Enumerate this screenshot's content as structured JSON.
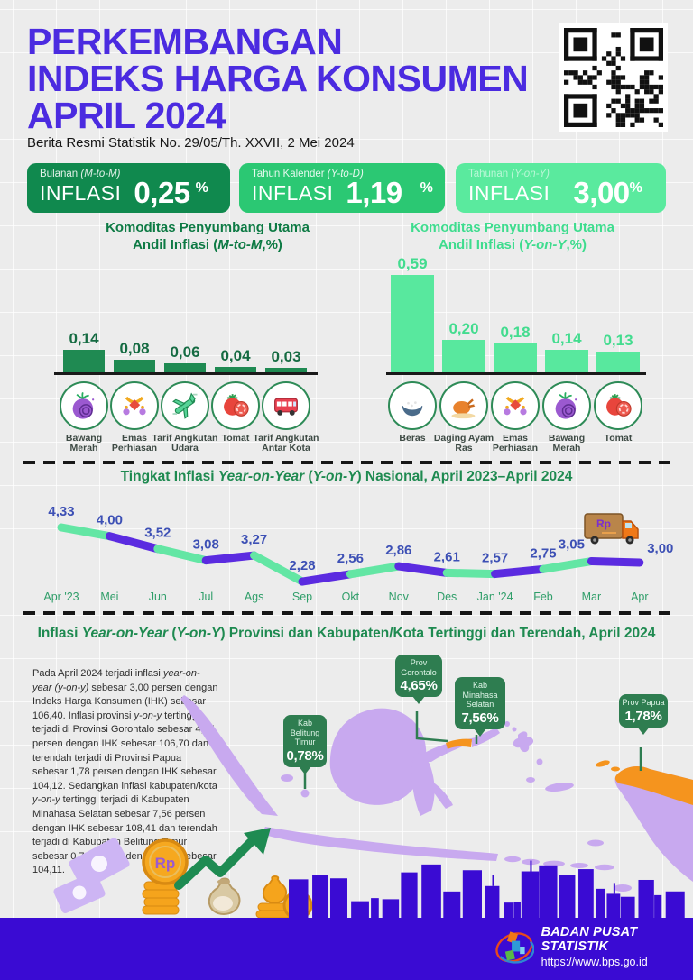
{
  "header": {
    "title_lines": [
      "PERKEMBANGAN",
      "INDEKS HARGA KONSUMEN",
      "APRIL 2024"
    ],
    "subtitle": "Berita Resmi Statistik No. 29/05/Th. XXVII, 2 Mei 2024",
    "qr_label": "qr-code"
  },
  "colors": {
    "accent_purple": "#4B2BE0",
    "box_mtm": "#10894E",
    "box_ytd": "#2BC873",
    "box_yoy": "#5AEA9E",
    "bar_dark_green": "#1F8A52",
    "bar_mint": "#58E89E",
    "line_green": "#63E6A4",
    "line_purple": "#5B2BE0",
    "value_label_blue": "#3D50B5",
    "month_label_green": "#2F9E69",
    "section_title_green": "#1E8A50",
    "callout_green": "#2E7D50",
    "map_purple": "#C8A9EF",
    "map_orange": "#F5941E",
    "footer_blue": "#3A0BD3"
  },
  "stat_boxes": [
    {
      "label_segments": [
        {
          "t": "Bulanan "
        },
        {
          "t": "(M-to-M)",
          "i": true
        }
      ],
      "prefix": "INFLASI",
      "value": "0,25",
      "unit": "%"
    },
    {
      "label_segments": [
        {
          "t": "Tahun Kalender "
        },
        {
          "t": "(Y-to-D)",
          "i": true
        }
      ],
      "prefix": "INFLASI",
      "value": "1,19",
      "unit": "%"
    },
    {
      "label_segments": [
        {
          "t": "Tahunan "
        },
        {
          "t": "(Y-on-Y)",
          "i": true
        }
      ],
      "prefix": "INFLASI",
      "value": "3,00",
      "unit": "%"
    }
  ],
  "captions": {
    "left_line1": [
      {
        "t": "Komoditas Penyumbang Utama"
      }
    ],
    "left_line2": [
      {
        "t": "Andil Inflasi ("
      },
      {
        "t": "M-to-M",
        "i": true
      },
      {
        "t": ",%)"
      }
    ],
    "right_line1": [
      {
        "t": "Komoditas Penyumbang Utama"
      }
    ],
    "right_line2": [
      {
        "t": "Andil Inflasi ("
      },
      {
        "t": "Y-on-Y",
        "i": true
      },
      {
        "t": ",%)"
      }
    ]
  },
  "chart_data": [
    {
      "id": "mtm_contributors",
      "type": "bar",
      "title": "Komoditas Penyumbang Utama Andil Inflasi (M-to-M,%)",
      "categories": [
        "Bawang Merah",
        "Emas Perhiasan",
        "Tarif Angkutan Udara",
        "Tomat",
        "Tarif Angkutan Antar Kota"
      ],
      "values": [
        0.14,
        0.08,
        0.06,
        0.04,
        0.03
      ],
      "value_labels": [
        "0,14",
        "0,08",
        "0,06",
        "0,04",
        "0,03"
      ],
      "icons": [
        "onion",
        "jewelry",
        "plane",
        "tomato",
        "bus"
      ],
      "bar_color": "#1F8A52",
      "label_color": "#156B42",
      "ylim": [
        0,
        0.2
      ],
      "grid": false
    },
    {
      "id": "yoy_contributors",
      "type": "bar",
      "title": "Komoditas Penyumbang Utama Andil Inflasi (Y-on-Y,%)",
      "categories": [
        "Beras",
        "Daging Ayam Ras",
        "Emas Perhiasan",
        "Bawang Merah",
        "Tomat"
      ],
      "values": [
        0.59,
        0.2,
        0.18,
        0.14,
        0.13
      ],
      "value_labels": [
        "0,59",
        "0,20",
        "0,18",
        "0,14",
        "0,13"
      ],
      "icons": [
        "rice",
        "chicken",
        "jewelry",
        "onion",
        "tomato"
      ],
      "bar_color": "#58E89E",
      "label_color": "#43DC8F",
      "ylim": [
        0,
        0.7
      ],
      "grid": false
    },
    {
      "id": "yoy_national_line",
      "type": "line",
      "title": "Tingkat Inflasi Year-on-Year (Y-on-Y) Nasional, April 2023–April 2024",
      "title_segments": [
        {
          "t": "Tingkat Inflasi "
        },
        {
          "t": "Year-on-Year",
          "i": true
        },
        {
          "t": " ("
        },
        {
          "t": "Y-on-Y",
          "i": true
        },
        {
          "t": ") Nasional, April 2023–April 2024"
        }
      ],
      "x": [
        "Apr '23",
        "Mei",
        "Jun",
        "Jul",
        "Ags",
        "Sep",
        "Okt",
        "Nov",
        "Des",
        "Jan '24",
        "Feb",
        "Mar",
        "Apr"
      ],
      "values": [
        4.33,
        4.0,
        3.52,
        3.08,
        3.27,
        2.28,
        2.56,
        2.86,
        2.61,
        2.57,
        2.75,
        3.05,
        3.0
      ],
      "value_labels": [
        "4,33",
        "4,00",
        "3,52",
        "3,08",
        "3,27",
        "2,28",
        "2,56",
        "2,86",
        "2,61",
        "2,57",
        "2,75",
        "3,05",
        "3,00"
      ],
      "segment_colors": [
        "#63E6A4",
        "#5B2BE0"
      ],
      "label_color": "#3D50B5",
      "tick_color": "#2F9E69",
      "ylim": [
        2.0,
        4.6
      ],
      "grid": false,
      "legend": "none"
    }
  ],
  "map_section": {
    "title_segments": [
      {
        "t": "Inflasi "
      },
      {
        "t": "Year-on-Year",
        "i": true
      },
      {
        "t": " ("
      },
      {
        "t": "Y-on-Y",
        "i": true
      },
      {
        "t": ") Provinsi dan Kabupaten/Kota Tertinggi dan Terendah, April 2024"
      }
    ],
    "paragraph_segments": [
      {
        "t": "Pada April 2024 terjadi inflasi "
      },
      {
        "t": "year-on-year (y-on-y)",
        "i": true
      },
      {
        "t": " sebesar 3,00 persen dengan Indeks Harga Konsumen (IHK) sebesar 106,40. Inflasi provinsi "
      },
      {
        "t": "y-on-y",
        "i": true
      },
      {
        "t": " tertinggi terjadi di Provinsi Gorontalo sebesar 4,65 persen dengan IHK sebesar 106,70 dan terendah terjadi di Provinsi Papua sebesar 1,78 persen dengan IHK sebesar 104,12. Sedangkan inflasi kabupaten/kota "
      },
      {
        "t": "y-on-y",
        "i": true
      },
      {
        "t": " tertinggi terjadi di Kabupaten Minahasa Selatan sebesar 7,56 persen dengan IHK sebesar 108,41 dan terendah terjadi di Kabupaten Belitung Timur sebesar 0,78 persen dengan IHK sebesar 104,11."
      }
    ],
    "callouts": [
      {
        "id": "belitung",
        "lines": [
          "Kab",
          "Belitung",
          "Timur"
        ],
        "value": "0,78%"
      },
      {
        "id": "gorontalo",
        "lines": [
          "Prov",
          "Gorontalo"
        ],
        "value": "4,65%"
      },
      {
        "id": "minahasa",
        "lines": [
          "Kab",
          "Minahasa",
          "Selatan"
        ],
        "value": "7,56%"
      },
      {
        "id": "papua",
        "lines": [
          "Prov Papua"
        ],
        "value": "1,78%"
      }
    ]
  },
  "line_chart_extras": {
    "truck_label": "Rp"
  },
  "footer": {
    "org": "BADAN PUSAT STATISTIK",
    "url": "https://www.bps.go.id"
  }
}
